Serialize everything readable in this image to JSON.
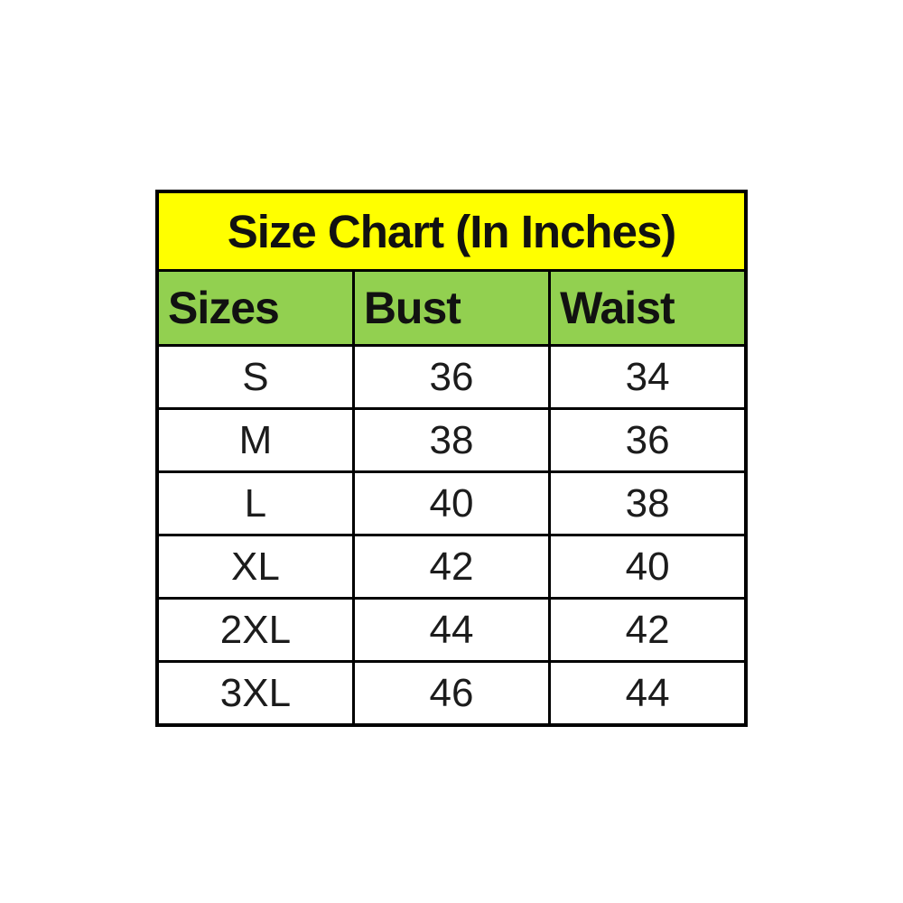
{
  "title": "Size Chart (In Inches)",
  "columns": {
    "sizes": "Sizes",
    "bust": "Bust",
    "waist": "Waist"
  },
  "rows": [
    {
      "size": "S",
      "bust": "36",
      "waist": "34"
    },
    {
      "size": "M",
      "bust": "38",
      "waist": "36"
    },
    {
      "size": "L",
      "bust": "40",
      "waist": "38"
    },
    {
      "size": "XL",
      "bust": "42",
      "waist": "40"
    },
    {
      "size": "2XL",
      "bust": "44",
      "waist": "42"
    },
    {
      "size": "3XL",
      "bust": "46",
      "waist": "44"
    }
  ],
  "colors": {
    "title_background": "#ffff00",
    "header_background": "#92d050",
    "border": "#000000",
    "text": "#111111",
    "page_background": "#ffffff"
  },
  "chart_data": {
    "type": "table",
    "title": "Size Chart (In Inches)",
    "columns": [
      "Sizes",
      "Bust",
      "Waist"
    ],
    "rows": [
      [
        "S",
        36,
        34
      ],
      [
        "M",
        38,
        36
      ],
      [
        "L",
        40,
        38
      ],
      [
        "XL",
        42,
        40
      ],
      [
        "2XL",
        44,
        42
      ],
      [
        "3XL",
        46,
        44
      ]
    ],
    "units": "inches",
    "layout": "title band (yellow), header row (green), 6 white data rows, black grid borders"
  }
}
